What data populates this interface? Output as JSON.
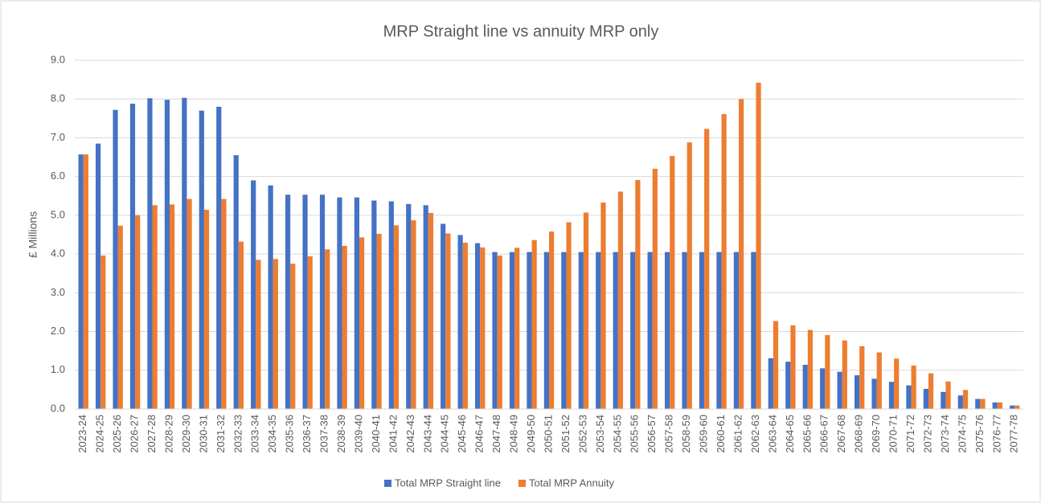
{
  "chart_data": {
    "type": "bar",
    "title": "MRP Straight line vs annuity MRP only",
    "y_label": "£ Millions",
    "categories": [
      "2023-24",
      "2024-25",
      "2025-26",
      "2026-27",
      "2027-28",
      "2028-29",
      "2029-30",
      "2030-31",
      "2031-32",
      "2032-33",
      "2033-34",
      "2034-35",
      "2035-36",
      "2036-37",
      "2037-38",
      "2038-39",
      "2039-40",
      "2040-41",
      "2041-42",
      "2042-43",
      "2043-44",
      "2044-45",
      "2045-46",
      "2046-47",
      "2047-48",
      "2048-49",
      "2049-50",
      "2050-51",
      "2051-52",
      "2052-53",
      "2053-54",
      "2054-55",
      "2055-56",
      "2056-57",
      "2057-58",
      "2058-59",
      "2059-60",
      "2060-61",
      "2061-62",
      "2062-63",
      "2063-64",
      "2064-65",
      "2065-66",
      "2066-67",
      "2067-68",
      "2068-69",
      "2069-70",
      "2070-71",
      "2071-72",
      "2072-73",
      "2073-74",
      "2074-75",
      "2075-76",
      "2076-77",
      "2077-78"
    ],
    "series": [
      {
        "name": "Total MRP Straight line",
        "color": "#4472c4",
        "values": [
          6.57,
          6.85,
          7.72,
          7.88,
          8.02,
          7.98,
          8.03,
          7.7,
          7.8,
          6.55,
          5.9,
          5.77,
          5.53,
          5.53,
          5.53,
          5.46,
          5.46,
          5.38,
          5.36,
          5.29,
          5.26,
          4.78,
          4.49,
          4.28,
          4.05,
          4.05,
          4.05,
          4.05,
          4.05,
          4.05,
          4.05,
          4.05,
          4.05,
          4.05,
          4.05,
          4.05,
          4.05,
          4.05,
          4.05,
          4.05,
          1.31,
          1.22,
          1.14,
          1.05,
          0.96,
          0.87,
          0.78,
          0.7,
          0.61,
          0.52,
          0.44,
          0.35,
          0.26,
          0.17,
          0.09
        ]
      },
      {
        "name": "Total MRP Annuity",
        "color": "#ed7d31",
        "values": [
          6.57,
          3.96,
          4.73,
          5.0,
          5.26,
          5.28,
          5.42,
          5.14,
          5.42,
          4.32,
          3.85,
          3.87,
          3.75,
          3.94,
          4.12,
          4.21,
          4.43,
          4.52,
          4.74,
          4.87,
          5.06,
          4.53,
          4.29,
          4.17,
          3.96,
          4.16,
          4.36,
          4.58,
          4.82,
          5.07,
          5.33,
          5.61,
          5.91,
          6.2,
          6.53,
          6.88,
          7.23,
          7.61,
          8.0,
          8.42,
          2.27,
          2.16,
          2.04,
          1.91,
          1.77,
          1.62,
          1.46,
          1.3,
          1.12,
          0.92,
          0.71,
          0.49,
          0.26,
          0.17,
          0.09
        ]
      }
    ],
    "ylim": [
      0,
      9
    ],
    "yticks": [
      {
        "value": 0,
        "label": "0.0"
      },
      {
        "value": 1,
        "label": "1.0"
      },
      {
        "value": 2,
        "label": "2.0"
      },
      {
        "value": 3,
        "label": "3.0"
      },
      {
        "value": 4,
        "label": "4.0"
      },
      {
        "value": 5,
        "label": "5.0"
      },
      {
        "value": 6,
        "label": "6.0"
      },
      {
        "value": 7,
        "label": "7.0"
      },
      {
        "value": 8,
        "label": "8.0"
      },
      {
        "value": 9,
        "label": "9.0"
      }
    ],
    "grid": true,
    "legend": "bottom"
  }
}
